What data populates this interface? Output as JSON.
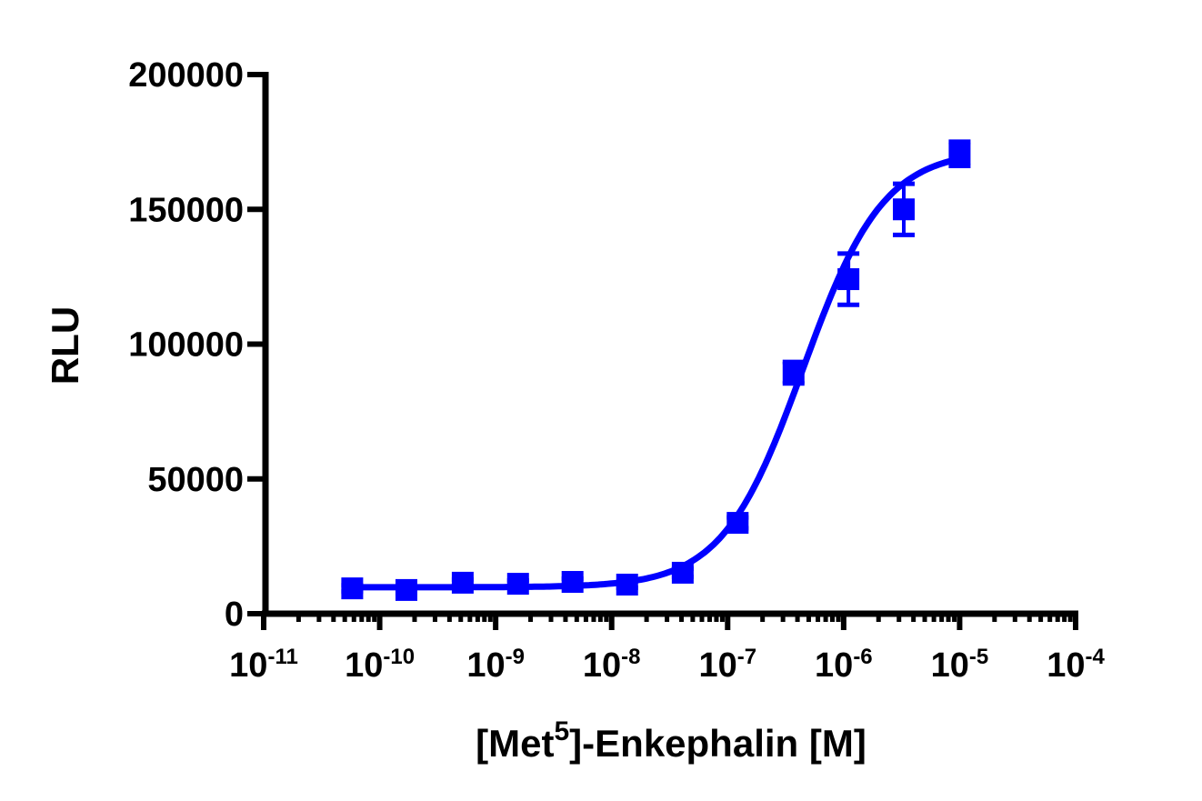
{
  "chart_data": {
    "type": "scatter",
    "title": "",
    "xlabel": "[Met5]-Enkephalin [M]",
    "xlabel_parts": {
      "pre": "[Met",
      "sup": "5",
      "post": "]-Enkephalin [M]"
    },
    "ylabel": "RLU",
    "xscale": "log",
    "xlim": [
      1e-11,
      0.0001
    ],
    "ylim": [
      0,
      200000
    ],
    "x_ticks": [
      {
        "exp": -11,
        "label": "10",
        "sup": "-11"
      },
      {
        "exp": -10,
        "label": "10",
        "sup": "-10"
      },
      {
        "exp": -9,
        "label": "10",
        "sup": "-9"
      },
      {
        "exp": -8,
        "label": "10",
        "sup": "-8"
      },
      {
        "exp": -7,
        "label": "10",
        "sup": "-7"
      },
      {
        "exp": -6,
        "label": "10",
        "sup": "-6"
      },
      {
        "exp": -5,
        "label": "10",
        "sup": "-5"
      },
      {
        "exp": -4,
        "label": "10",
        "sup": "-4"
      }
    ],
    "y_ticks": [
      0,
      50000,
      100000,
      150000,
      200000
    ],
    "grid": false,
    "legend": null,
    "series": [
      {
        "name": "[Met5]-Enkephalin",
        "color": "#0000ff",
        "marker": "square",
        "fit": "sigmoidal dose-response",
        "fit_params": {
          "bottom": 9800,
          "top": 172000,
          "logEC50": -6.35,
          "hill": 1.25
        },
        "points": [
          {
            "x": 5.8e-11,
            "y": 9400,
            "err": 1200
          },
          {
            "x": 1.7e-10,
            "y": 8800,
            "err": 1200
          },
          {
            "x": 5.2e-10,
            "y": 11500,
            "err": 1200
          },
          {
            "x": 1.56e-09,
            "y": 11100,
            "err": 1200
          },
          {
            "x": 4.6e-09,
            "y": 11800,
            "err": 1200
          },
          {
            "x": 1.36e-08,
            "y": 10800,
            "err": 1200
          },
          {
            "x": 4.1e-08,
            "y": 15200,
            "err": 1500
          },
          {
            "x": 1.22e-07,
            "y": 33700,
            "err": 2000
          },
          {
            "x": 3.7e-07,
            "y": 89400,
            "err": 4000
          },
          {
            "x": 1.1e-06,
            "y": 124100,
            "err": 9500
          },
          {
            "x": 3.3e-06,
            "y": 150000,
            "err": 9500
          },
          {
            "x": 1e-05,
            "y": 170600,
            "err": 4500
          }
        ]
      }
    ]
  }
}
